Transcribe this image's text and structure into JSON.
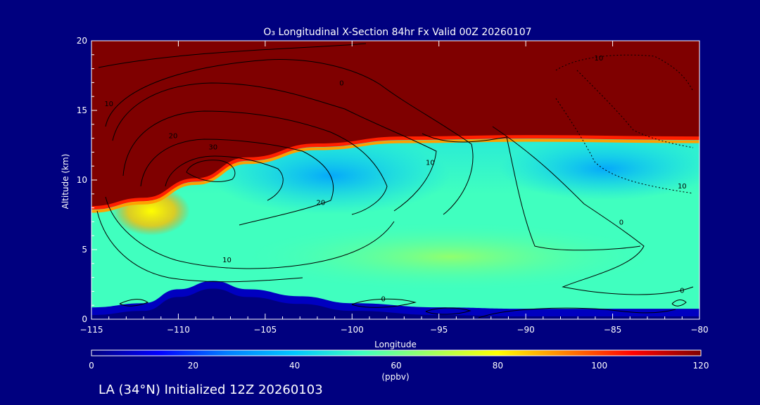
{
  "chart_data": {
    "type": "heatmap",
    "title": "O₃ Longitudinal X-Section 84hr  Fx Valid 00Z 20260107",
    "xlabel": "Longitude",
    "ylabel": "Altitude (km)",
    "xlim": [
      -115,
      -80
    ],
    "ylim": [
      0,
      20
    ],
    "x_ticks": [
      -115,
      -110,
      -105,
      -100,
      -95,
      -90,
      -85,
      -80
    ],
    "x_tick_labels": [
      "−115",
      "−110",
      "−105",
      "−100",
      "−95",
      "−90",
      "−85",
      "−80"
    ],
    "y_ticks": [
      0,
      5,
      10,
      15,
      20
    ],
    "y_tick_labels": [
      "0",
      "5",
      "10",
      "15",
      "20"
    ],
    "colorbar": {
      "min": 0,
      "max": 120,
      "unit": "(ppbv)",
      "ticks": [
        0,
        20,
        40,
        60,
        80,
        100,
        120
      ],
      "tick_labels": [
        "0",
        "20",
        "40",
        "60",
        "80",
        "100",
        "120"
      ],
      "colors": [
        "#00007f",
        "#0000ff",
        "#007fff",
        "#00c8ff",
        "#40ffbf",
        "#9fff60",
        "#ffff00",
        "#ff8000",
        "#ff0000",
        "#7f0000"
      ]
    },
    "tropopause_km": [
      {
        "x": -115,
        "y": 8.0
      },
      {
        "x": -112,
        "y": 8.6
      },
      {
        "x": -109,
        "y": 10.0
      },
      {
        "x": -106,
        "y": 11.5
      },
      {
        "x": -102,
        "y": 12.5
      },
      {
        "x": -97,
        "y": 13.0
      },
      {
        "x": -90,
        "y": 13.1
      },
      {
        "x": -80,
        "y": 13.0
      }
    ],
    "terrain_km": [
      {
        "x": -115,
        "y": 0.3
      },
      {
        "x": -112,
        "y": 0.6
      },
      {
        "x": -110,
        "y": 1.6
      },
      {
        "x": -108,
        "y": 2.2
      },
      {
        "x": -106,
        "y": 1.6
      },
      {
        "x": -103,
        "y": 1.1
      },
      {
        "x": -100,
        "y": 0.6
      },
      {
        "x": -95,
        "y": 0.3
      },
      {
        "x": -90,
        "y": 0.2
      },
      {
        "x": -80,
        "y": 0.2
      }
    ],
    "contour_labels": [
      {
        "text": "10",
        "x": -85.8,
        "y": 18.8
      },
      {
        "text": "0",
        "x": -100.6,
        "y": 17.0
      },
      {
        "text": "10",
        "x": -114.0,
        "y": 15.5
      },
      {
        "text": "20",
        "x": -110.3,
        "y": 13.2
      },
      {
        "text": "30",
        "x": -108.0,
        "y": 12.4
      },
      {
        "text": "10",
        "x": -95.5,
        "y": 11.3
      },
      {
        "text": "10",
        "x": -81.0,
        "y": 9.6
      },
      {
        "text": "20",
        "x": -101.8,
        "y": 8.4
      },
      {
        "text": "0",
        "x": -84.5,
        "y": 7.0
      },
      {
        "text": "10",
        "x": -107.2,
        "y": 4.3
      },
      {
        "text": "0",
        "x": -98.2,
        "y": 1.5
      },
      {
        "text": "0",
        "x": -81.0,
        "y": 2.1
      }
    ]
  },
  "footer": {
    "initialized_label": "LA (34°N) Initialized 12Z 20260103"
  }
}
